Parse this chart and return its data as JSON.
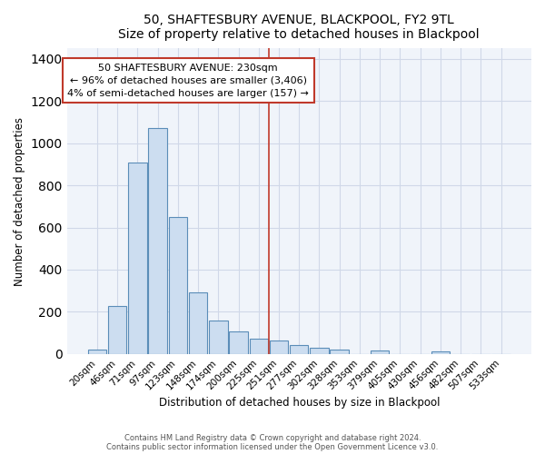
{
  "title": "50, SHAFTESBURY AVENUE, BLACKPOOL, FY2 9TL",
  "subtitle": "Size of property relative to detached houses in Blackpool",
  "xlabel": "Distribution of detached houses by size in Blackpool",
  "ylabel": "Number of detached properties",
  "bar_labels": [
    "20sqm",
    "46sqm",
    "71sqm",
    "97sqm",
    "123sqm",
    "148sqm",
    "174sqm",
    "200sqm",
    "225sqm",
    "251sqm",
    "277sqm",
    "302sqm",
    "328sqm",
    "353sqm",
    "379sqm",
    "405sqm",
    "430sqm",
    "456sqm",
    "482sqm",
    "507sqm",
    "533sqm"
  ],
  "bar_values": [
    20,
    228,
    910,
    1070,
    650,
    290,
    160,
    107,
    70,
    65,
    40,
    27,
    20,
    0,
    18,
    0,
    0,
    13,
    0,
    0,
    0
  ],
  "bar_color": "#ccddf0",
  "bar_edge_color": "#5b8db8",
  "ylim": [
    0,
    1450
  ],
  "yticks": [
    0,
    200,
    400,
    600,
    800,
    1000,
    1200,
    1400
  ],
  "property_line_color": "#c0392b",
  "annotation_title": "50 SHAFTESBURY AVENUE: 230sqm",
  "annotation_line1": "← 96% of detached houses are smaller (3,406)",
  "annotation_line2": "4% of semi-detached houses are larger (157) →",
  "annotation_box_facecolor": "#ffffff",
  "annotation_border_color": "#c0392b",
  "bg_color": "#ffffff",
  "plot_bg_color": "#f0f4fa",
  "grid_color": "#d0d8e8",
  "footer1": "Contains HM Land Registry data © Crown copyright and database right 2024.",
  "footer2": "Contains public sector information licensed under the Open Government Licence v3.0."
}
